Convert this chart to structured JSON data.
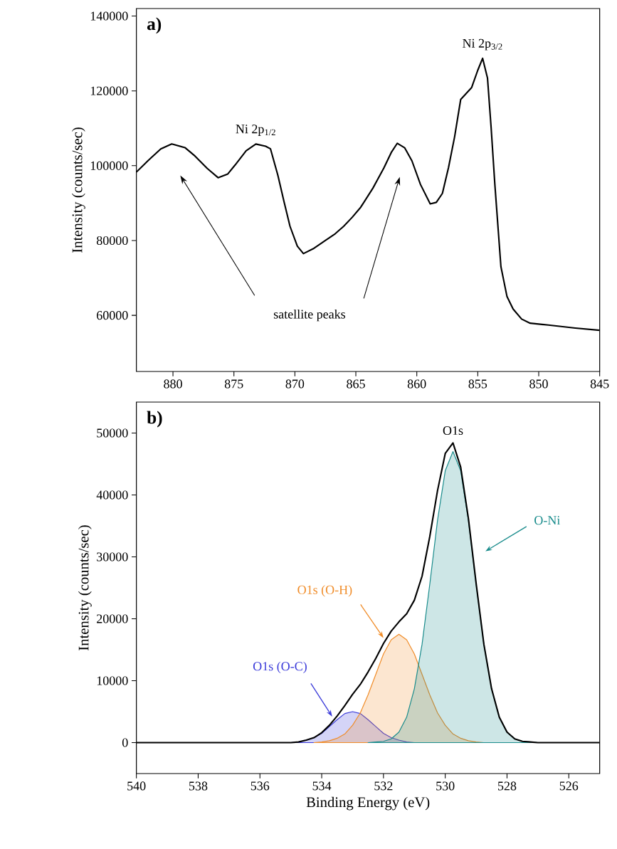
{
  "chart_data": [
    {
      "type": "line",
      "title": "a)",
      "ylabel": "Intensity (counts/sec)",
      "xlim": [
        883,
        845
      ],
      "ylim": [
        45000,
        142000
      ],
      "xticks": [
        880,
        875,
        870,
        865,
        860,
        855,
        850,
        845
      ],
      "yticks": [
        60000,
        80000,
        100000,
        120000,
        140000
      ],
      "series": [
        {
          "color": "#000000",
          "x": [
            883,
            882,
            881,
            880.1,
            879,
            878.2,
            877.2,
            876.3,
            875.5,
            874.9,
            874,
            873.2,
            872.4,
            872,
            871.4,
            870.9,
            870.4,
            869.8,
            869.3,
            868.5,
            867.5,
            866.7,
            866,
            865.3,
            864.6,
            863.6,
            862.7,
            862.1,
            861.6,
            861,
            860.4,
            859.7,
            858.9,
            858.4,
            857.9,
            857.4,
            856.9,
            856.4,
            855.5,
            855,
            854.6,
            854.2,
            853.9,
            853.6,
            853.1,
            852.6,
            852.1,
            851.4,
            850.7,
            849.2,
            847,
            845
          ],
          "values": [
            98300,
            101500,
            104500,
            105800,
            104800,
            102600,
            99300,
            96800,
            97800,
            100200,
            104000,
            105800,
            105200,
            104500,
            97500,
            90500,
            83800,
            78500,
            76500,
            77800,
            80000,
            81800,
            83800,
            86200,
            88900,
            94000,
            99400,
            103500,
            106000,
            104800,
            101300,
            95000,
            89800,
            90200,
            92600,
            99500,
            107700,
            117700,
            120900,
            125500,
            128700,
            123400,
            110000,
            95100,
            73000,
            65000,
            61700,
            59000,
            57900,
            57400,
            56600,
            56000
          ]
        }
      ],
      "annotations": [
        {
          "text": "Ni 2p$_{1/2}$",
          "x": 873.2,
          "y": 105800
        },
        {
          "text": "Ni 2p$_{3/2}$",
          "x": 854.6,
          "y": 128700
        },
        "satellite peaks"
      ]
    },
    {
      "type": "line",
      "title": "b)",
      "xlabel": "Binding Energy (eV)",
      "ylabel": "Intensity (counts/sec)",
      "xlim": [
        540,
        525
      ],
      "ylim": [
        -5000,
        55000
      ],
      "xticks": [
        540,
        538,
        536,
        534,
        532,
        530,
        528,
        526
      ],
      "yticks": [
        0,
        10000,
        20000,
        30000,
        40000,
        50000
      ],
      "series": [
        {
          "type": "area",
          "name": "O1s (O-C)",
          "color": "#3b3bd9",
          "x": [
            535.5,
            535,
            534.75,
            534.5,
            534.25,
            534,
            533.75,
            533.5,
            533.25,
            533,
            532.75,
            532.5,
            532.25,
            532,
            531.75,
            531.5,
            531.25,
            531,
            530.5
          ],
          "values": [
            0,
            0,
            100,
            400,
            800,
            1500,
            2600,
            3700,
            4700,
            5000,
            4700,
            3700,
            2600,
            1500,
            800,
            400,
            100,
            0,
            0
          ]
        },
        {
          "type": "area",
          "name": "O1s (O-H)",
          "color": "#f08c28",
          "x": [
            534.25,
            534,
            533.75,
            533.5,
            533.25,
            533,
            532.75,
            532.5,
            532.25,
            532,
            531.75,
            531.5,
            531.25,
            531,
            530.75,
            530.5,
            530.25,
            530,
            529.75,
            529.5,
            529.25,
            529,
            528.75
          ],
          "values": [
            0,
            100,
            300,
            700,
            1400,
            2800,
            4800,
            7700,
            11000,
            14300,
            16600,
            17500,
            16600,
            14300,
            11000,
            7700,
            4800,
            2800,
            1400,
            700,
            300,
            100,
            0
          ]
        },
        {
          "type": "area",
          "name": "O-Ni",
          "color": "#1a8c8c",
          "x": [
            532.5,
            532.25,
            532,
            531.75,
            531.5,
            531.25,
            531,
            530.75,
            530.5,
            530.25,
            530,
            529.75,
            529.5,
            529.25,
            529,
            528.75,
            528.5,
            528.25,
            528,
            527.75,
            527.5,
            527.25,
            527
          ],
          "values": [
            0,
            100,
            200,
            600,
            1700,
            4100,
            8700,
            15900,
            25600,
            35900,
            43900,
            47000,
            43900,
            35900,
            25600,
            15900,
            8700,
            4100,
            1700,
            600,
            200,
            100,
            0
          ]
        },
        {
          "type": "line",
          "color": "#000000",
          "x": [
            540,
            535.5,
            535.25,
            535,
            534.75,
            534.5,
            534.25,
            534,
            533.75,
            533.5,
            533.25,
            533,
            532.75,
            532.5,
            532.25,
            532,
            531.75,
            531.5,
            531.25,
            531,
            530.75,
            530.5,
            530.25,
            530,
            529.75,
            529.5,
            529.25,
            529,
            528.75,
            528.5,
            528.25,
            528,
            527.75,
            527.5,
            527.25,
            527,
            525
          ],
          "values": [
            0,
            0,
            0,
            0,
            100,
            400,
            800,
            1600,
            2800,
            4300,
            6000,
            7800,
            9400,
            11400,
            13600,
            16000,
            18000,
            19500,
            20800,
            23000,
            26900,
            33300,
            40700,
            46700,
            48400,
            44500,
            36200,
            25700,
            15900,
            8700,
            4100,
            1700,
            600,
            200,
            100,
            0,
            0
          ]
        }
      ],
      "annotations": [
        {
          "text": "O1s",
          "x": 529.75,
          "y": 48400
        }
      ]
    }
  ]
}
